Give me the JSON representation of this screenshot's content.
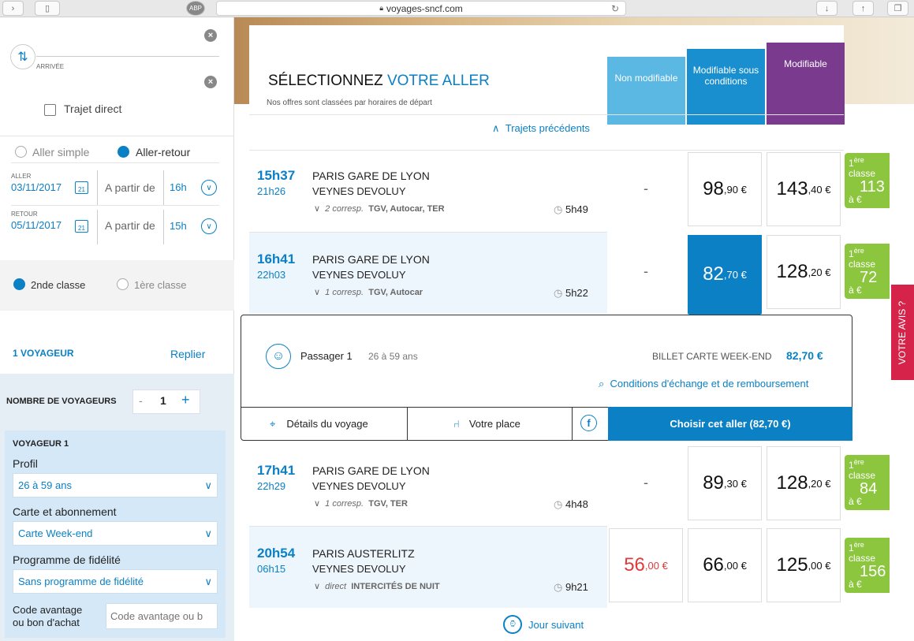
{
  "browser": {
    "url": "voyages-sncf.com",
    "abp": "ABP"
  },
  "search": {
    "arrival_label": "ARRIVÉE",
    "direct_label": "Trajet direct",
    "aller_simple": "Aller simple",
    "aller_retour": "Aller-retour",
    "aller_label": "ALLER",
    "aller_date": "03/11/2017",
    "cal_num": "21",
    "from_label": "A partir de",
    "aller_hour": "16h",
    "retour_label": "RETOUR",
    "retour_date": "05/11/2017",
    "retour_hour": "15h",
    "class2": "2nde classe",
    "class1": "1ère classe"
  },
  "voyageurs": {
    "count_label": "1 VOYAGEUR",
    "fold": "Replier",
    "nombre_label": "NOMBRE DE VOYAGEURS",
    "minus": "-",
    "count": "1",
    "plus": "+",
    "v1_title": "VOYAGEUR 1",
    "profil_label": "Profil",
    "profil_value": "26 à 59 ans",
    "carte_label": "Carte et abonnement",
    "carte_value": "Carte Week-end",
    "fid_label": "Programme de fidélité",
    "fid_value": "Sans programme de fidélité",
    "code_label1": "Code avantage",
    "code_label2": "ou bon d'achat",
    "code_placeholder": "Code avantage ou b"
  },
  "header": {
    "title_a": "SÉLECTIONNEZ",
    "title_b": "VOTRE ALLER",
    "subtitle": "Nos offres sont classées par horaires de départ",
    "col_non": "Non modifiable",
    "col_sous": "Modifiable sous conditions",
    "col_mod": "Modifiable",
    "prev": "Trajets précédents",
    "next": "Jour suivant"
  },
  "trips": [
    {
      "dep": "15h37",
      "arr": "21h26",
      "from": "PARIS GARE DE LYON",
      "to": "VEYNES DEVOLUY",
      "corresp": "2 corresp.",
      "trains": "TGV, Autocar, TER",
      "dur": "5h49",
      "p1": "-",
      "p2_int": "98",
      "p2_dec": ",90 €",
      "p3_int": "143",
      "p3_dec": ",40 €",
      "first_price": "113"
    },
    {
      "dep": "16h41",
      "arr": "22h03",
      "from": "PARIS GARE DE LYON",
      "to": "VEYNES DEVOLUY",
      "corresp": "1 corresp.",
      "trains": "TGV, Autocar",
      "dur": "5h22",
      "p1": "-",
      "p2_int": "82",
      "p2_dec": ",70 €",
      "p3_int": "128",
      "p3_dec": ",20 €",
      "first_price": "72"
    },
    {
      "dep": "17h41",
      "arr": "22h29",
      "from": "PARIS GARE DE LYON",
      "to": "VEYNES DEVOLUY",
      "corresp": "1 corresp.",
      "trains": "TGV, TER",
      "dur": "4h48",
      "p1": "-",
      "p2_int": "89",
      "p2_dec": ",30 €",
      "p3_int": "128",
      "p3_dec": ",20 €",
      "first_price": "84"
    },
    {
      "dep": "20h54",
      "arr": "06h15",
      "from": "PARIS AUSTERLITZ",
      "to": "VEYNES DEVOLUY",
      "corresp": "direct",
      "trains": "INTERCITÉS DE NUIT",
      "dur": "9h21",
      "p1_int": "56",
      "p1_dec": ",00 €",
      "p2_int": "66",
      "p2_dec": ",00 €",
      "p3_int": "125",
      "p3_dec": ",00 €",
      "first_price": "156"
    }
  ],
  "first_class": {
    "pre": "1",
    "sup": "ère",
    "word": "classe",
    "suffix": "à €"
  },
  "popup": {
    "passenger": "Passager 1",
    "age": "26 à 59 ans",
    "fare": "BILLET CARTE WEEK-END",
    "price": "82,70 €",
    "conditions": "Conditions d'échange et de remboursement",
    "details": "Détails du voyage",
    "place": "Votre place",
    "choose": "Choisir cet aller (82,70 €)"
  },
  "feedback": "VOTRE AVIS ?",
  "colors": {
    "blue": "#0b80c4",
    "light_blue": "#5bb8e3",
    "purple": "#7a3b8f",
    "green": "#8cc63f",
    "red": "#e03a3a"
  }
}
